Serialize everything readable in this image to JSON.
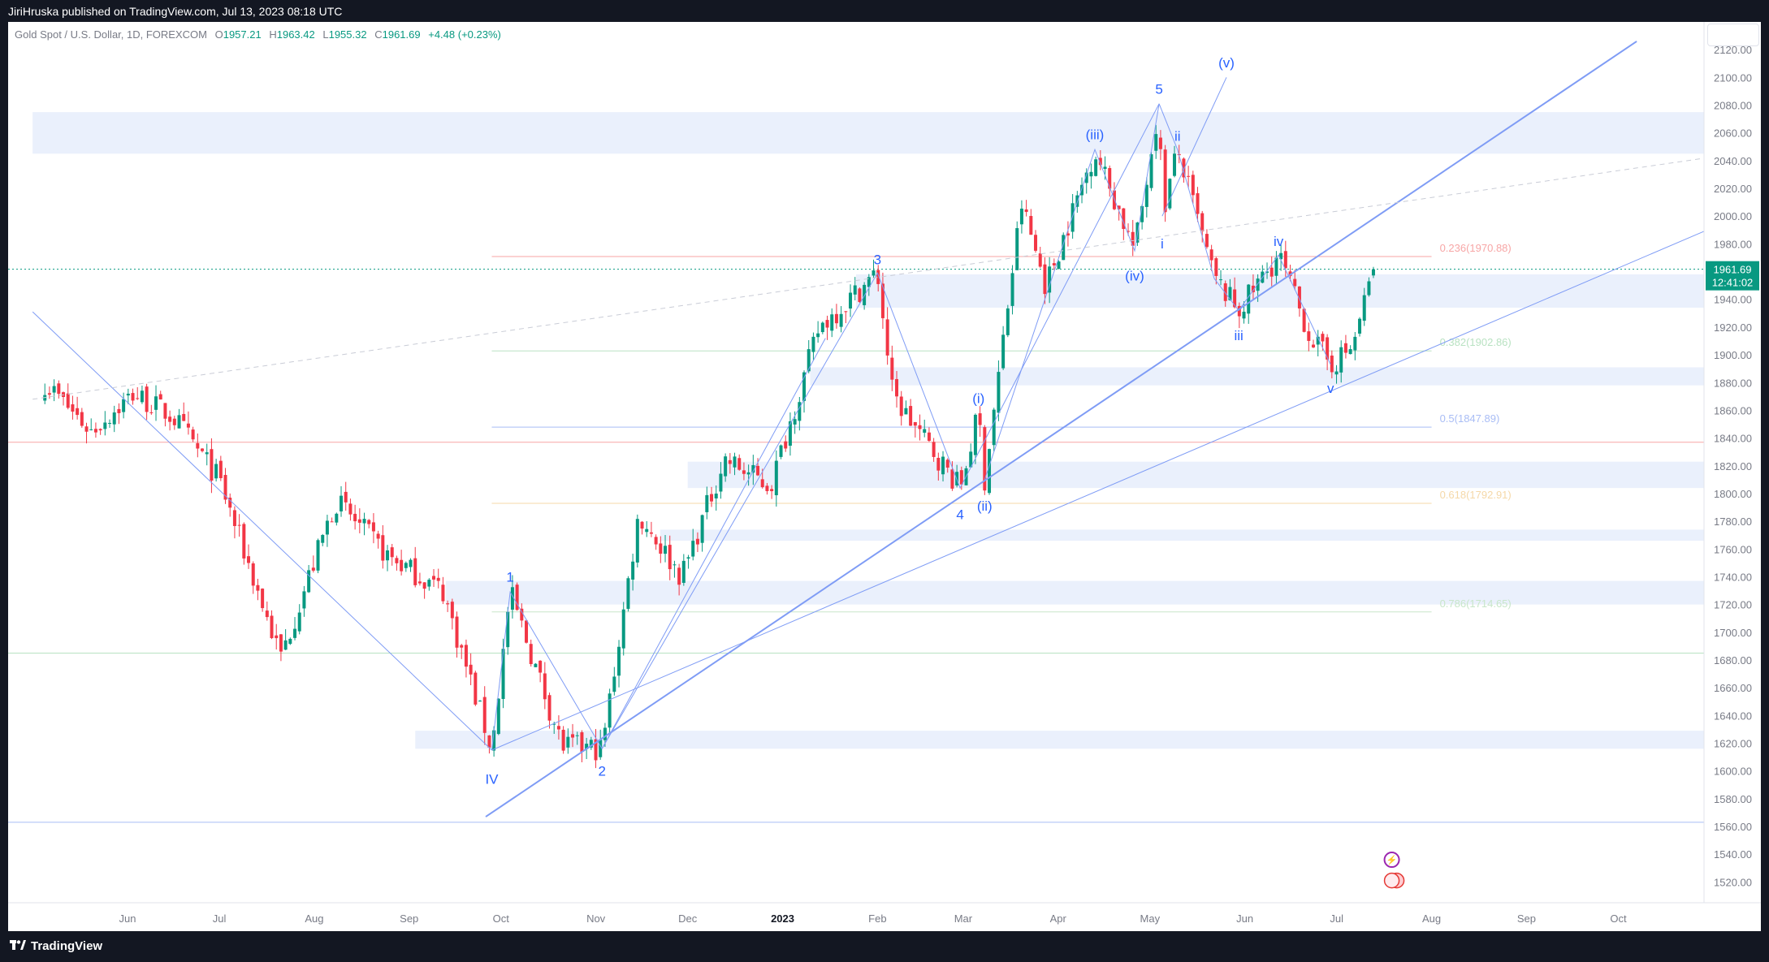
{
  "header": {
    "publisher": "JiriHruska published on TradingView.com, Jul 13, 2023 08:18 UTC"
  },
  "legend": {
    "symbol": "Gold Spot / U.S. Dollar, 1D, FOREXCOM",
    "open": "1957.21",
    "high": "1963.42",
    "low": "1955.32",
    "close": "1961.69",
    "change": "+4.48 (+0.23%)"
  },
  "price_tag": {
    "price": "1961.69",
    "countdown": "12:41:02"
  },
  "footer": {
    "brand": "TradingView",
    "logo": "tradingview-logo"
  },
  "colors": {
    "up": "#089981",
    "down": "#f23645",
    "wave": "#2962ff",
    "zone": "#e3ebfb"
  },
  "chart_data": {
    "type": "candlestick",
    "symbol": "XAUUSD",
    "timeframe": "1D",
    "ylim": [
      1505,
      2140
    ],
    "y_ticks": [
      1520,
      1540,
      1560,
      1580,
      1600,
      1620,
      1640,
      1660,
      1680,
      1700,
      1720,
      1740,
      1760,
      1780,
      1800,
      1820,
      1840,
      1860,
      1880,
      1900,
      1920,
      1940,
      1960,
      1980,
      2000,
      2020,
      2040,
      2060,
      2080,
      2100,
      2120
    ],
    "x_axis_labels": [
      {
        "label": "Jun",
        "date": "2022-06-01"
      },
      {
        "label": "Jul",
        "date": "2022-07-01"
      },
      {
        "label": "Aug",
        "date": "2022-08-01"
      },
      {
        "label": "Sep",
        "date": "2022-09-01"
      },
      {
        "label": "Oct",
        "date": "2022-10-01"
      },
      {
        "label": "Nov",
        "date": "2022-11-01"
      },
      {
        "label": "Dec",
        "date": "2022-12-01"
      },
      {
        "label": "2023",
        "date": "2023-01-01"
      },
      {
        "label": "Feb",
        "date": "2023-02-01"
      },
      {
        "label": "Mar",
        "date": "2023-03-01"
      },
      {
        "label": "Apr",
        "date": "2023-04-01"
      },
      {
        "label": "May",
        "date": "2023-05-01"
      },
      {
        "label": "Jun",
        "date": "2023-06-01"
      },
      {
        "label": "Jul",
        "date": "2023-07-01"
      },
      {
        "label": "Aug",
        "date": "2023-08-01"
      },
      {
        "label": "Sep",
        "date": "2023-09-01"
      },
      {
        "label": "Oct",
        "date": "2023-10-01"
      }
    ],
    "swing_path": [
      [
        "2022-05-05",
        1880
      ],
      [
        "2022-05-20",
        1845
      ],
      [
        "2022-06-03",
        1872
      ],
      [
        "2022-06-16",
        1855
      ],
      [
        "2022-07-01",
        1810
      ],
      [
        "2022-07-21",
        1682
      ],
      [
        "2022-08-08",
        1795
      ],
      [
        "2022-08-25",
        1755
      ],
      [
        "2022-09-12",
        1730
      ],
      [
        "2022-09-28",
        1615
      ],
      [
        "2022-10-04",
        1729
      ],
      [
        "2022-10-21",
        1618
      ],
      [
        "2022-11-03",
        1616
      ],
      [
        "2022-11-15",
        1785
      ],
      [
        "2022-11-29",
        1740
      ],
      [
        "2022-12-13",
        1825
      ],
      [
        "2022-12-28",
        1805
      ],
      [
        "2023-01-13",
        1920
      ],
      [
        "2023-02-01",
        1959
      ],
      [
        "2023-02-06",
        1870
      ],
      [
        "2023-02-28",
        1804
      ],
      [
        "2023-03-06",
        1858
      ],
      [
        "2023-03-08",
        1810
      ],
      [
        "2023-03-20",
        2009
      ],
      [
        "2023-03-28",
        1950
      ],
      [
        "2023-04-13",
        2048
      ],
      [
        "2023-04-26",
        1975
      ],
      [
        "2023-05-04",
        2081
      ],
      [
        "2023-05-05",
        2000
      ],
      [
        "2023-05-10",
        2048
      ],
      [
        "2023-05-22",
        1955
      ],
      [
        "2023-05-30",
        1932
      ],
      [
        "2023-06-12",
        1972
      ],
      [
        "2023-06-22",
        1915
      ],
      [
        "2023-06-29",
        1893
      ],
      [
        "2023-07-06",
        1905
      ],
      [
        "2023-07-13",
        1961.69
      ]
    ],
    "last_candle": {
      "date": "2023-07-13",
      "open": 1957.21,
      "high": 1963.42,
      "low": 1955.32,
      "close": 1961.69
    },
    "zones": [
      {
        "from": "2022-05-01",
        "to": "2023-10-30",
        "low": 2045,
        "high": 2075
      },
      {
        "from": "2023-01-25",
        "to": "2023-10-30",
        "low": 1934,
        "high": 1958
      },
      {
        "from": "2023-01-10",
        "to": "2023-10-30",
        "low": 1878,
        "high": 1891
      },
      {
        "from": "2022-12-01",
        "to": "2023-10-30",
        "low": 1804,
        "high": 1823
      },
      {
        "from": "2022-11-22",
        "to": "2023-10-30",
        "low": 1766,
        "high": 1774
      },
      {
        "from": "2022-09-13",
        "to": "2023-10-30",
        "low": 1720,
        "high": 1737
      },
      {
        "from": "2022-09-03",
        "to": "2023-10-30",
        "low": 1616,
        "high": 1629
      }
    ],
    "fib_retracement": {
      "from": "2022-09-28",
      "to": "2023-08-01",
      "levels": [
        {
          "label": "0.236(1970.88)",
          "price": 1970.88,
          "color": "#f7a6a6"
        },
        {
          "label": "0.382(1902.86)",
          "price": 1902.86,
          "color": "#b9e2c2"
        },
        {
          "label": "0.5(1847.89)",
          "price": 1847.89,
          "color": "#a9bdf5"
        },
        {
          "label": "0.618(1792.91)",
          "price": 1792.91,
          "color": "#f5d8a8"
        },
        {
          "label": "0.786(1714.65)",
          "price": 1714.65,
          "color": "#c8e6c9"
        }
      ]
    },
    "horizontal_lines": [
      {
        "price": 1837,
        "color": "#f7a6a6"
      },
      {
        "price": 1685,
        "color": "#b9e2c2"
      },
      {
        "price": 1563,
        "color": "#a9bdf5"
      },
      {
        "price": 1961.69,
        "color": "#089981",
        "dashed": true
      }
    ],
    "wave_lines": [
      {
        "points": [
          [
            "2022-05-01",
            1931
          ],
          [
            "2022-09-28",
            1615
          ]
        ],
        "width": 1
      },
      {
        "points": [
          [
            "2022-09-28",
            1615
          ],
          [
            "2022-10-04",
            1729
          ],
          [
            "2022-11-03",
            1616
          ],
          [
            "2023-02-01",
            1959
          ],
          [
            "2023-02-28",
            1804
          ],
          [
            "2023-05-04",
            2081
          ]
        ],
        "width": 1
      },
      {
        "points": [
          [
            "2022-11-03",
            1616
          ],
          [
            "2023-01-15",
            1912
          ]
        ],
        "width": 1
      },
      {
        "points": [
          [
            "2023-03-08",
            1810
          ],
          [
            "2023-04-13",
            2048
          ],
          [
            "2023-04-26",
            1975
          ],
          [
            "2023-05-04",
            2081
          ]
        ],
        "width": 1
      },
      {
        "points": [
          [
            "2023-05-04",
            2081
          ],
          [
            "2023-05-10",
            2048
          ],
          [
            "2023-05-22",
            1955
          ],
          [
            "2023-05-30",
            1932
          ],
          [
            "2023-06-12",
            1972
          ],
          [
            "2023-06-29",
            1893
          ]
        ],
        "width": 1
      },
      {
        "points": [
          [
            "2023-05-05",
            2000
          ],
          [
            "2023-05-26",
            2100
          ]
        ],
        "width": 1
      },
      {
        "points": [
          [
            "2022-09-26",
            1567
          ],
          [
            "2023-10-07",
            2126
          ]
        ],
        "width": 2
      },
      {
        "points": [
          [
            "2022-09-28",
            1615
          ],
          [
            "2023-10-30",
            1990
          ]
        ],
        "width": 1
      },
      {
        "points": [
          [
            "2022-05-01",
            1868
          ],
          [
            "2023-10-30",
            2042
          ]
        ],
        "width": 1,
        "dashed": true
      }
    ],
    "wave_labels": [
      {
        "text": "IV",
        "date": "2022-09-28",
        "price": 1600,
        "pos": "below"
      },
      {
        "text": "1",
        "date": "2022-10-04",
        "price": 1734,
        "pos": "above"
      },
      {
        "text": "2",
        "date": "2022-11-03",
        "price": 1606,
        "pos": "below"
      },
      {
        "text": "3",
        "date": "2023-02-01",
        "price": 1963,
        "pos": "above"
      },
      {
        "text": "4",
        "date": "2023-02-28",
        "price": 1791,
        "pos": "below"
      },
      {
        "text": "(i)",
        "date": "2023-03-06",
        "price": 1863,
        "pos": "above"
      },
      {
        "text": "(ii)",
        "date": "2023-03-08",
        "price": 1797,
        "pos": "below"
      },
      {
        "text": "(iii)",
        "date": "2023-04-13",
        "price": 2053,
        "pos": "above"
      },
      {
        "text": "(iv)",
        "date": "2023-04-26",
        "price": 1963,
        "pos": "below"
      },
      {
        "text": "5",
        "date": "2023-05-04",
        "price": 2086,
        "pos": "above"
      },
      {
        "text": "i",
        "date": "2023-05-05",
        "price": 1986,
        "pos": "below"
      },
      {
        "text": "ii",
        "date": "2023-05-10",
        "price": 2052,
        "pos": "above"
      },
      {
        "text": "(v)",
        "date": "2023-05-26",
        "price": 2105,
        "pos": "above"
      },
      {
        "text": "iii",
        "date": "2023-05-30",
        "price": 1920,
        "pos": "below"
      },
      {
        "text": "iv",
        "date": "2023-06-12",
        "price": 1976,
        "pos": "above"
      },
      {
        "text": "v",
        "date": "2023-06-29",
        "price": 1882,
        "pos": "below"
      }
    ]
  }
}
